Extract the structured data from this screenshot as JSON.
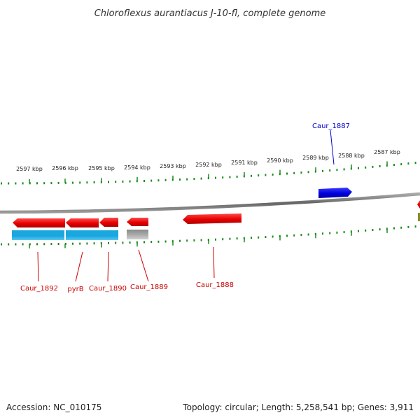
{
  "title": "Chloroflexus aurantiacus J-10-fl, complete genome",
  "footer": {
    "accession": "Accession: NC_010175",
    "summary": "Topology: circular; Length: 5,258,541 bp; Genes: 3,911"
  },
  "ticks": [
    {
      "label": "2597 kbp"
    },
    {
      "label": "2596 kbp"
    },
    {
      "label": "2595 kbp"
    },
    {
      "label": "2594 kbp"
    },
    {
      "label": "2593 kbp"
    },
    {
      "label": "2592 kbp"
    },
    {
      "label": "2591 kbp"
    },
    {
      "label": "2590 kbp"
    },
    {
      "label": "2589 kbp"
    },
    {
      "label": "2588 kbp"
    },
    {
      "label": "2587 kbp"
    }
  ],
  "genes": [
    {
      "label": "Caur_1887",
      "color": "#0000cc"
    },
    {
      "label": "Caur_1892",
      "color": "#cc0000"
    },
    {
      "label": "pyrB",
      "color": "#cc0000"
    },
    {
      "label": "Caur_1890",
      "color": "#cc0000"
    },
    {
      "label": "Caur_1889",
      "color": "#cc0000"
    },
    {
      "label": "Caur_1888",
      "color": "#cc0000"
    }
  ],
  "colors": {
    "forward_gene": "#0000dd",
    "reverse_gene": "#e60000",
    "rna_bar": "#1aa7e0",
    "grey_bar": "#b0b0b0",
    "backbone": "#888888",
    "tick": "#1a8a1a"
  }
}
